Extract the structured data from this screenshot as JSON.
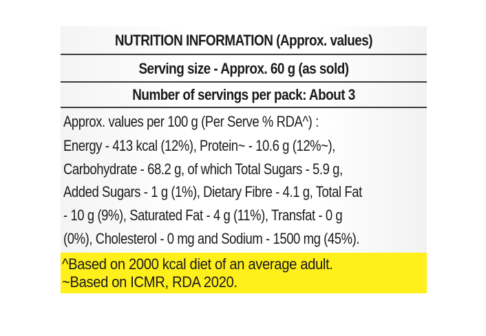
{
  "label": {
    "title": "NUTRITION INFORMATION (Approx. values)",
    "serving_size": "Serving size - Approx. 60 g (as sold)",
    "servings_per_pack": "Number of servings per pack: About 3",
    "body_lines": [
      "Approx. values per 100 g (Per Serve % RDA^) :",
      "Energy - 413 kcal (12%), Protein~ - 10.6 g (12%~),",
      "Carbohydrate - 68.2 g, of which Total Sugars - 5.9 g,",
      "Added Sugars - 1 g (1%), Dietary Fibre - 4.1 g, Total Fat",
      "- 10 g (9%), Saturated Fat - 4 g (11%), Transfat - 0 g",
      "(0%), Cholesterol - 0 mg and Sodium - 1500 mg (45%)."
    ],
    "footnotes": [
      "^Based on 2000 kcal diet of an average adult.",
      "~Based on ICMR, RDA  2020."
    ],
    "colors": {
      "highlight": "#ffef1a",
      "text": "#1a1a1a",
      "rule": "#3a3a3a"
    }
  }
}
